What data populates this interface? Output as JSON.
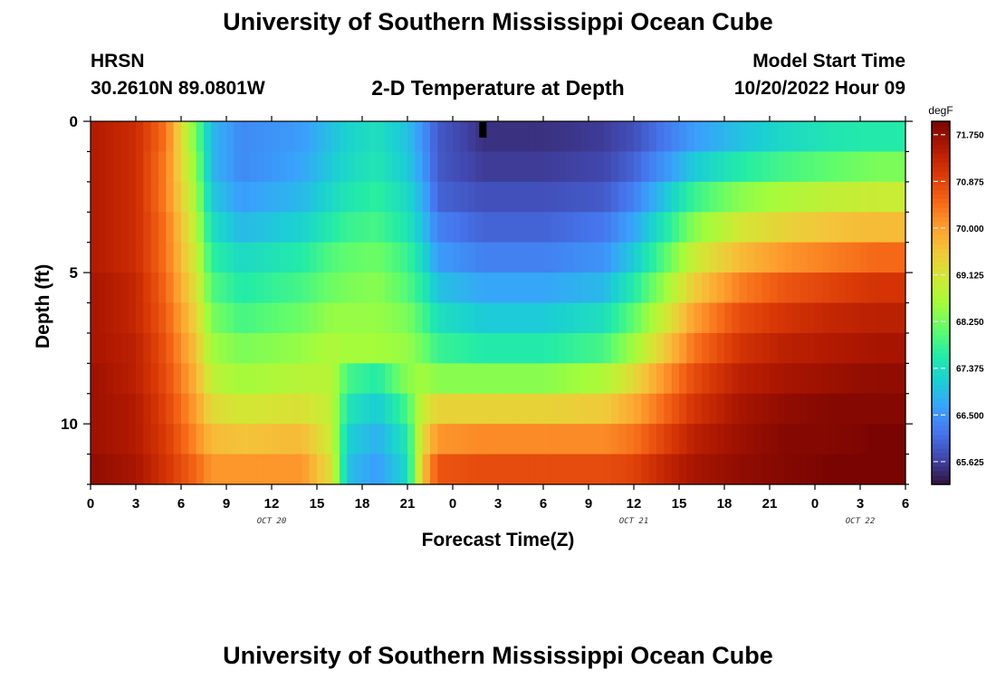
{
  "page": {
    "title_top": "University of Southern Mississippi Ocean Cube",
    "title_bottom": "University of Southern Mississippi Ocean Cube",
    "station": "HRSN",
    "coords": "30.2610N  89.0801W",
    "plot_title": "2-D Temperature at Depth",
    "model_start_label": "Model Start Time",
    "model_start_value": "10/20/2022 Hour 09"
  },
  "chart_data": {
    "type": "heatmap",
    "title": "2-D Temperature at Depth",
    "xlabel": "Forecast Time(Z)",
    "ylabel": "Depth (ft)",
    "x_hours_range": [
      0,
      54
    ],
    "x_tick_labels": [
      "0",
      "3",
      "6",
      "9",
      "12",
      "15",
      "18",
      "21",
      "0",
      "3",
      "6",
      "9",
      "12",
      "15",
      "18",
      "21",
      "0",
      "3",
      "6"
    ],
    "date_labels": [
      {
        "text": "OCT 20",
        "hour": 12
      },
      {
        "text": "OCT 21",
        "hour": 36
      },
      {
        "text": "OCT 22",
        "hour": 51
      }
    ],
    "y_range_ft": [
      0,
      12
    ],
    "y_tick_labels": [
      "0",
      "5",
      "10"
    ],
    "y_tick_values": [
      0,
      5,
      10
    ],
    "colorbar": {
      "unit": "degF",
      "min": 65.2,
      "max": 72.0,
      "labels": [
        "71.750",
        "70.875",
        "70.000",
        "69.125",
        "68.250",
        "67.375",
        "66.500",
        "65.625"
      ],
      "label_values": [
        71.75,
        70.875,
        70.0,
        69.125,
        68.25,
        67.375,
        66.5,
        65.625
      ],
      "colors": [
        "#30123b",
        "#4145ab",
        "#4675ed",
        "#39a2fc",
        "#1bcfd4",
        "#24eca6",
        "#61fc6c",
        "#a4fc3b",
        "#d1e834",
        "#f3c63a",
        "#fe9b2d",
        "#f36315",
        "#d93806",
        "#b11901",
        "#7a0402"
      ]
    },
    "depth_levels_ft": [
      0.5,
      1.5,
      2.5,
      3.5,
      4.5,
      5.5,
      6.5,
      7.5,
      8.5,
      9.5,
      10.5,
      11.5
    ],
    "series": [
      {
        "x_hours": [
          0,
          3,
          5,
          7,
          8,
          10,
          14,
          16,
          17,
          19,
          21,
          22,
          23,
          26,
          30,
          34,
          36,
          38,
          40,
          43,
          46,
          49,
          52,
          54
        ],
        "values_by_depth": [
          [
            71.5,
            71.2,
            70.4,
            68.2,
            66.9,
            66.4,
            66.6,
            67.0,
            67.2,
            67.4,
            67.0,
            66.5,
            65.9,
            65.5,
            65.5,
            65.6,
            65.8,
            66.2,
            66.6,
            67.0,
            67.3,
            67.5,
            67.6,
            67.6
          ],
          [
            71.5,
            71.2,
            70.3,
            68.4,
            66.9,
            66.4,
            66.7,
            67.1,
            67.3,
            67.5,
            67.1,
            66.6,
            65.9,
            65.6,
            65.6,
            65.7,
            66.0,
            66.5,
            67.1,
            67.6,
            67.9,
            68.1,
            68.3,
            68.3
          ],
          [
            71.5,
            71.2,
            70.3,
            68.6,
            67.1,
            66.6,
            66.9,
            67.3,
            67.5,
            67.7,
            67.3,
            66.8,
            66.0,
            65.8,
            65.8,
            65.9,
            66.3,
            67.0,
            67.8,
            68.4,
            68.7,
            68.9,
            69.0,
            69.0
          ],
          [
            71.5,
            71.2,
            70.4,
            68.8,
            67.4,
            66.9,
            67.2,
            67.6,
            67.8,
            67.9,
            67.5,
            67.0,
            66.3,
            66.0,
            66.0,
            66.2,
            66.7,
            67.5,
            68.4,
            69.1,
            69.4,
            69.6,
            69.7,
            69.7
          ],
          [
            71.5,
            71.2,
            70.4,
            69.0,
            67.7,
            67.3,
            67.6,
            68.0,
            68.1,
            68.2,
            67.8,
            67.3,
            66.6,
            66.3,
            66.3,
            66.5,
            67.1,
            68.0,
            69.0,
            69.7,
            70.1,
            70.3,
            70.5,
            70.5
          ],
          [
            71.6,
            71.3,
            70.5,
            69.2,
            68.0,
            67.6,
            67.9,
            68.2,
            68.3,
            68.4,
            68.0,
            67.6,
            67.0,
            66.7,
            66.7,
            66.9,
            67.6,
            68.5,
            69.5,
            70.3,
            70.7,
            70.9,
            71.1,
            71.1
          ],
          [
            71.6,
            71.3,
            70.6,
            69.4,
            68.3,
            67.9,
            68.2,
            68.5,
            68.5,
            68.5,
            68.3,
            67.9,
            67.4,
            67.1,
            67.1,
            67.4,
            68.1,
            69.0,
            70.0,
            70.8,
            71.1,
            71.3,
            71.4,
            71.4
          ],
          [
            71.6,
            71.4,
            70.7,
            69.6,
            68.6,
            68.3,
            68.5,
            68.7,
            68.6,
            68.6,
            68.5,
            68.2,
            67.8,
            67.6,
            67.6,
            67.9,
            68.6,
            69.5,
            70.4,
            71.1,
            71.4,
            71.5,
            71.6,
            71.6
          ],
          [
            71.7,
            71.4,
            70.8,
            69.8,
            68.9,
            68.6,
            68.8,
            68.8,
            67.9,
            67.6,
            68.4,
            68.6,
            68.4,
            68.4,
            68.4,
            68.7,
            69.3,
            70.1,
            70.8,
            71.4,
            71.6,
            71.7,
            71.8,
            71.8
          ],
          [
            71.7,
            71.5,
            70.9,
            70.0,
            69.3,
            69.1,
            69.2,
            68.9,
            67.5,
            67.1,
            67.9,
            69.0,
            69.4,
            69.4,
            69.4,
            69.5,
            69.9,
            70.5,
            71.1,
            71.6,
            71.8,
            71.9,
            71.9,
            71.9
          ],
          [
            71.7,
            71.5,
            71.0,
            70.2,
            69.7,
            69.6,
            69.7,
            69.0,
            67.2,
            66.8,
            67.5,
            69.3,
            70.1,
            70.2,
            70.2,
            70.2,
            70.4,
            70.9,
            71.4,
            71.7,
            71.9,
            71.9,
            72.0,
            72.0
          ],
          [
            71.8,
            71.6,
            71.1,
            70.5,
            70.1,
            70.1,
            70.1,
            69.2,
            67.0,
            66.6,
            67.3,
            69.6,
            70.7,
            70.8,
            70.8,
            70.8,
            70.9,
            71.3,
            71.6,
            71.8,
            71.9,
            72.0,
            72.0,
            72.0
          ]
        ]
      }
    ],
    "marker": {
      "x_hour": 26,
      "depth_ft": 0.3
    }
  }
}
